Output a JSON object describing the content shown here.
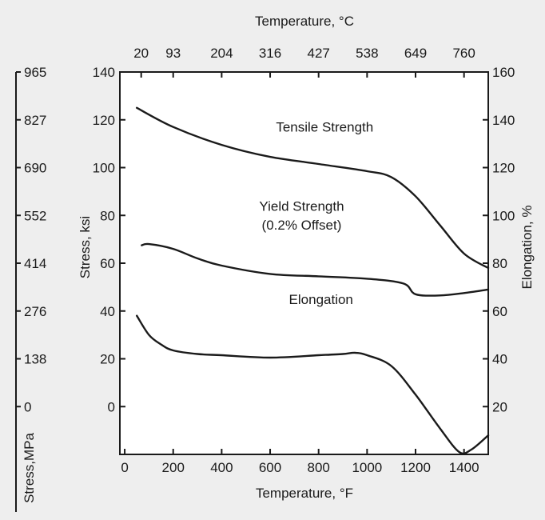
{
  "chart_data": {
    "type": "line",
    "title": "",
    "grid": false,
    "x_axis": {
      "label": "Temperature, °F",
      "range": [
        -20,
        1500
      ],
      "ticks": [
        0,
        200,
        400,
        600,
        800,
        1000,
        1200,
        1400
      ]
    },
    "x2_axis": {
      "label": "Temperature, °C",
      "position": "top",
      "ticks": [
        {
          "label": "20",
          "f": 68
        },
        {
          "label": "93",
          "f": 200
        },
        {
          "label": "204",
          "f": 400
        },
        {
          "label": "316",
          "f": 600
        },
        {
          "label": "427",
          "f": 800
        },
        {
          "label": "538",
          "f": 1000
        },
        {
          "label": "649",
          "f": 1200
        },
        {
          "label": "760",
          "f": 1400
        }
      ]
    },
    "y_axis": {
      "label": "Stress, ksi",
      "range": [
        -20,
        140
      ],
      "ticks": [
        0,
        20,
        40,
        60,
        80,
        100,
        120,
        140
      ]
    },
    "y2_axis": {
      "label": "Elongation, %",
      "position": "right",
      "range": [
        0,
        160
      ],
      "ticks": [
        20,
        40,
        60,
        80,
        100,
        120,
        140,
        160
      ]
    },
    "y3_axis": {
      "label": "Stress,MPa",
      "position": "far-left",
      "ticks": [
        {
          "label": "965",
          "ksi": 140
        },
        {
          "label": "827",
          "ksi": 120
        },
        {
          "label": "690",
          "ksi": 100
        },
        {
          "label": "552",
          "ksi": 80
        },
        {
          "label": "414",
          "ksi": 60
        },
        {
          "label": "276",
          "ksi": 40
        },
        {
          "label": "138",
          "ksi": 20
        },
        {
          "label": "0",
          "ksi": 0
        }
      ]
    },
    "series": [
      {
        "name": "Tensile Strength",
        "axis": "left",
        "x": [
          50,
          200,
          400,
          600,
          800,
          1000,
          1100,
          1200,
          1300,
          1400,
          1500
        ],
        "y": [
          125,
          117,
          109.5,
          104.5,
          101.5,
          98.5,
          96,
          88,
          76,
          64,
          58
        ]
      },
      {
        "name": "Yield Strength\n(0.2% Offset)",
        "axis": "left",
        "x": [
          70,
          100,
          200,
          300,
          400,
          600,
          800,
          1000,
          1150,
          1200,
          1300,
          1400,
          1500
        ],
        "y": [
          67.5,
          68,
          66,
          62,
          59,
          55.5,
          54.5,
          53.5,
          51.5,
          47,
          46.5,
          47.5,
          49
        ]
      },
      {
        "name": "Elongation",
        "axis": "right",
        "x": [
          50,
          100,
          150,
          200,
          300,
          400,
          600,
          800,
          900,
          950,
          1000,
          1100,
          1200,
          1300,
          1380,
          1430,
          1500
        ],
        "y": [
          58,
          50,
          46,
          43.5,
          42,
          41.5,
          40.5,
          41.5,
          42,
          42.5,
          41.5,
          37,
          25,
          11,
          1,
          2,
          8
        ]
      }
    ],
    "annotations": [
      {
        "text": "Tensile Strength",
        "x": 825,
        "y": 115
      },
      {
        "text": "Yield Strength",
        "x": 730,
        "y": 82
      },
      {
        "text": "(0.2% Offset)",
        "x": 730,
        "y": 74
      },
      {
        "text": "Elongation",
        "x": 810,
        "y": 43
      }
    ]
  }
}
